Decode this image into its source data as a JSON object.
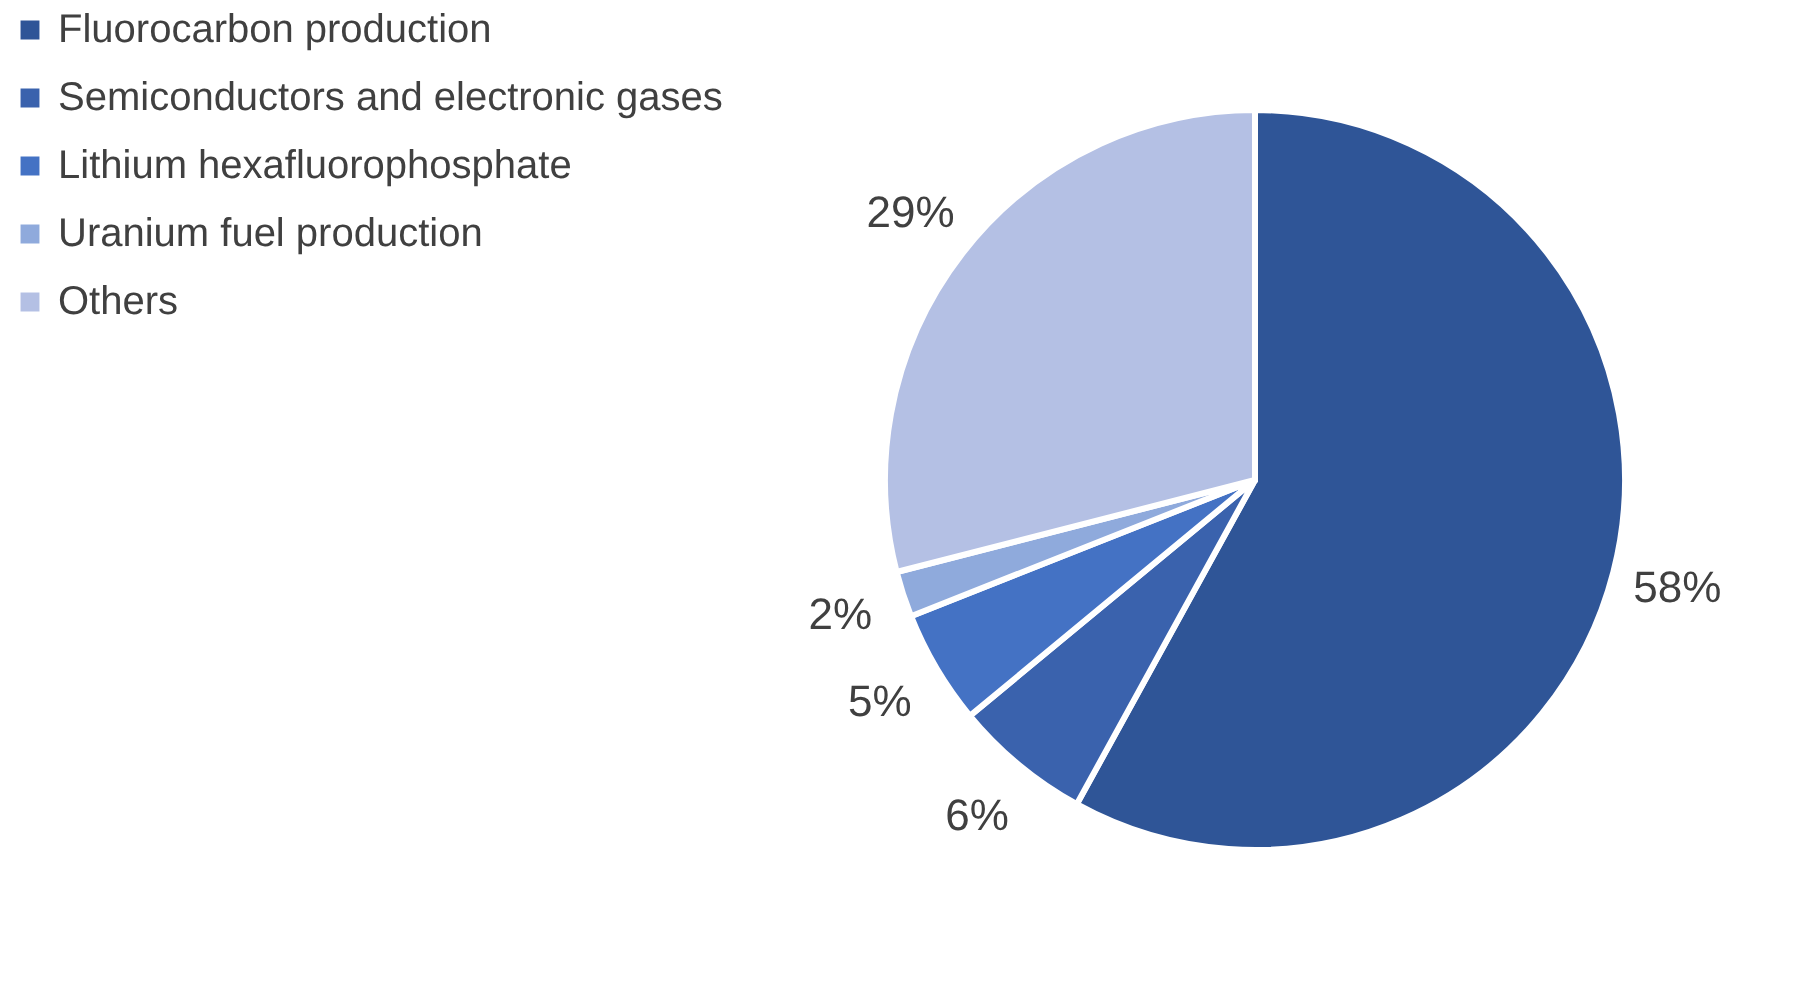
{
  "chart_data": {
    "type": "pie",
    "categories": [
      "Fluorocarbon production",
      "Semiconductors and electronic gases",
      "Lithium hexafluorophosphate",
      "Uranium fuel production",
      "Others"
    ],
    "values": [
      58,
      6,
      5,
      2,
      29
    ],
    "value_labels": [
      "58%",
      "6%",
      "5%",
      "2%",
      "29%"
    ],
    "colors": [
      "#2f5597",
      "#3a62ad",
      "#4472c4",
      "#8faadc",
      "#b4c0e4"
    ],
    "legend": "left"
  }
}
